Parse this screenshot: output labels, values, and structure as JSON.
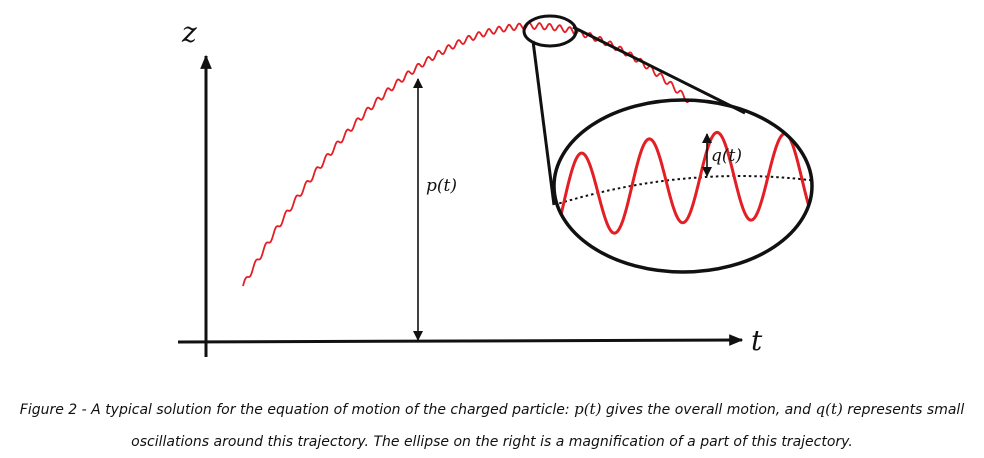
{
  "axes": {
    "z_label": "z",
    "t_label": "t"
  },
  "annotations": {
    "p_label": "p(t)",
    "q_label": "q(t)"
  },
  "colors": {
    "trajectory": "#e31e24",
    "axes": "#111111",
    "mean_path": "#111111"
  },
  "caption": {
    "line1_a": "Figure 2 - A typical solution for the equation of motion of the charged particle: ",
    "line1_p": "p(t)",
    "line1_b": " gives the overall motion, and ",
    "line1_q": "q(t)",
    "line1_c": " represents small",
    "line2": "oscillations around this trajectory. The ellipse on the right is a magnification of a part of this trajectory."
  }
}
